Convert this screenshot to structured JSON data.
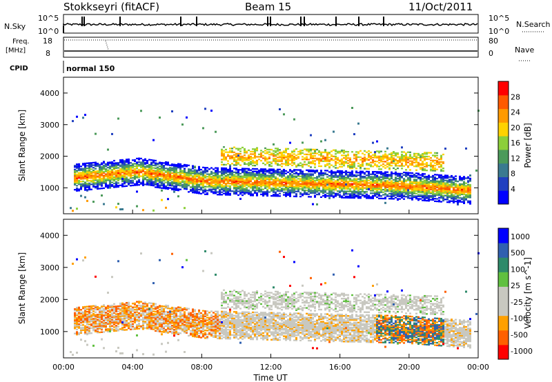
{
  "header": {
    "station": "Stokkseyri (fitACF)",
    "beam": "Beam 15",
    "date": "11/Oct/2011"
  },
  "panels": {
    "nsky": {
      "label": "N.Sky",
      "tick_top": "10^5",
      "tick_bottom": "10^0",
      "right_label": "N.Search",
      "right_top": "10^5",
      "right_bottom": "10^0"
    },
    "freq": {
      "label_line1": "Freq.",
      "label_line2": "[MHz]",
      "tick_top": "18",
      "tick_bottom": "8",
      "right_label": "Nave",
      "right_top": "80",
      "right_bottom": "0"
    },
    "cpid": {
      "label": "CPID",
      "value": "normal 150"
    }
  },
  "colors": {
    "power": [
      "#0000ff",
      "#2040c0",
      "#3a7a90",
      "#4c9a5a",
      "#8ccf3a",
      "#ffd200",
      "#ff9a00",
      "#ff5a00",
      "#ff0000"
    ],
    "velocity": [
      "#ff0000",
      "#ff6000",
      "#ffa000",
      "#c8c8c0",
      "#c8c8c0",
      "#60c040",
      "#2e8a6a",
      "#3060b0",
      "#0000ff"
    ]
  },
  "chart_data": [
    {
      "type": "heatmap",
      "name": "power",
      "ylabel": "Slant Range [km]",
      "xlim": [
        "00:00",
        "24:00"
      ],
      "ylim": [
        180,
        4500
      ],
      "y_ticks": [
        1000,
        2000,
        3000,
        4000
      ],
      "colorbar": {
        "label": "Power [dB]",
        "ticks": [
          4,
          8,
          12,
          16,
          20,
          24,
          28
        ],
        "range": [
          0,
          32
        ]
      },
      "echo_bands": [
        {
          "from_hour": 0.5,
          "to_hour": 23.5,
          "center_km": [
            1300,
            1500,
            1200,
            1150,
            1100,
            1050,
            900
          ],
          "value": "24-32 dB"
        },
        {
          "from_hour": 9,
          "to_hour": 22,
          "center_km": [
            2000,
            1900,
            1800
          ],
          "value": "12-20 dB"
        }
      ]
    },
    {
      "type": "heatmap",
      "name": "velocity",
      "ylabel": "Slant Range [km]",
      "xlabel": "Time UT",
      "x_ticks": [
        "00:00",
        "04:00",
        "08:00",
        "12:00",
        "16:00",
        "20:00",
        "00:00"
      ],
      "ylim": [
        180,
        4500
      ],
      "y_ticks": [
        1000,
        2000,
        3000,
        4000
      ],
      "colorbar": {
        "label": "Velocity [m s^-1]",
        "ticks": [
          "1000",
          "500",
          "100",
          "25",
          "-25",
          "-100",
          "-500",
          "-1000"
        ]
      }
    }
  ]
}
